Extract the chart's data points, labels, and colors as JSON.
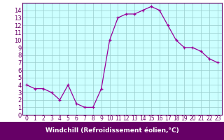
{
  "x": [
    0,
    1,
    2,
    3,
    4,
    5,
    6,
    7,
    8,
    9,
    10,
    11,
    12,
    13,
    14,
    15,
    16,
    17,
    18,
    19,
    20,
    21,
    22,
    23
  ],
  "y": [
    4,
    3.5,
    3.5,
    3,
    2,
    4,
    1.5,
    1,
    1,
    3.5,
    10,
    13,
    13.5,
    13.5,
    14,
    14.5,
    14,
    12,
    10,
    9,
    9,
    8.5,
    7.5,
    7
  ],
  "line_color": "#990099",
  "marker_color": "#990099",
  "bg_color": "#ccffff",
  "fig_bg_color": "#ffffff",
  "grid_color": "#99cccc",
  "xlabel": "Windchill (Refroidissement éolien,°C)",
  "xlim": [
    -0.5,
    23.5
  ],
  "ylim": [
    0,
    15
  ],
  "yticks": [
    0,
    1,
    2,
    3,
    4,
    5,
    6,
    7,
    8,
    9,
    10,
    11,
    12,
    13,
    14
  ],
  "xticks": [
    0,
    1,
    2,
    3,
    4,
    5,
    6,
    7,
    8,
    9,
    10,
    11,
    12,
    13,
    14,
    15,
    16,
    17,
    18,
    19,
    20,
    21,
    22,
    23
  ],
  "xlabel_bar_color": "#660066",
  "xlabel_text_color": "#ffffff",
  "tick_color": "#660066",
  "spine_color": "#660066",
  "font_size_xlabel": 6.5,
  "font_size_ytick": 6,
  "font_size_xtick": 5.5
}
